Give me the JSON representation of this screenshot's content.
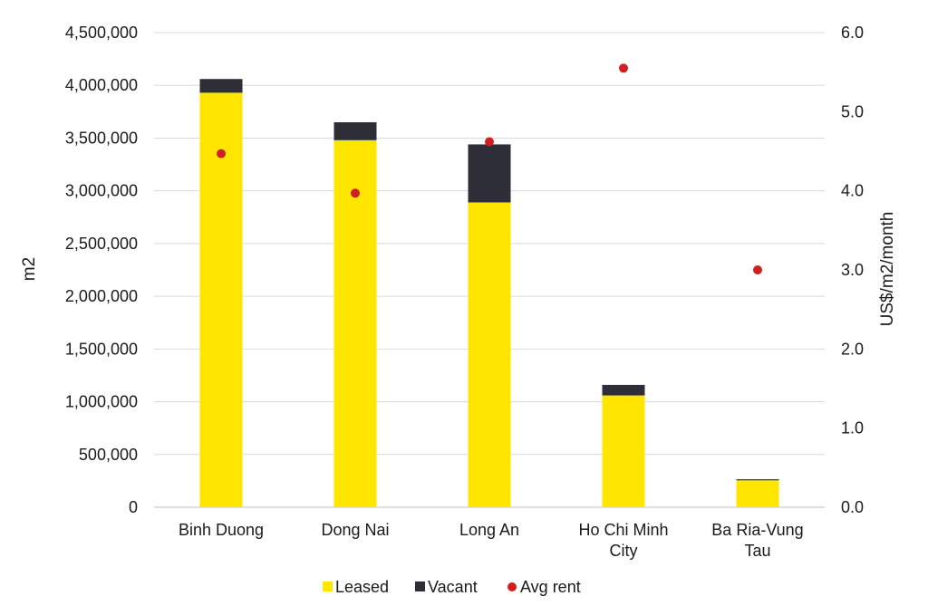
{
  "chart_data": {
    "type": "bar",
    "stacked": true,
    "categories": [
      [
        "Binh Duong"
      ],
      [
        "Dong Nai"
      ],
      [
        "Long An"
      ],
      [
        "Ho Chi Minh",
        "City"
      ],
      [
        "Ba Ria-Vung",
        "Tau"
      ]
    ],
    "series": [
      {
        "name": "Leased",
        "axis": "left",
        "kind": "bar",
        "color": "#FFE600",
        "values": [
          3930000,
          3480000,
          2890000,
          1060000,
          255000
        ]
      },
      {
        "name": "Vacant",
        "axis": "left",
        "kind": "bar",
        "color": "#2E2E38",
        "values": [
          130000,
          170000,
          550000,
          100000,
          10000
        ]
      },
      {
        "name": "Avg rent",
        "axis": "right",
        "kind": "scatter",
        "color": "#D21E1E",
        "values": [
          4.47,
          3.97,
          4.62,
          5.55,
          3.0
        ]
      }
    ],
    "ylabel": "m2",
    "y2label": "US$/m2/month",
    "ylim": [
      0,
      4500000
    ],
    "y2lim": [
      0,
      6.0
    ],
    "yticks": [
      "0",
      "500,000",
      "1,000,000",
      "1,500,000",
      "2,000,000",
      "2,500,000",
      "3,000,000",
      "3,500,000",
      "4,000,000",
      "4,500,000"
    ],
    "y2ticks": [
      "0.0",
      "1.0",
      "2.0",
      "3.0",
      "4.0",
      "5.0",
      "6.0"
    ],
    "grid": true,
    "legend": "bottom-center"
  }
}
